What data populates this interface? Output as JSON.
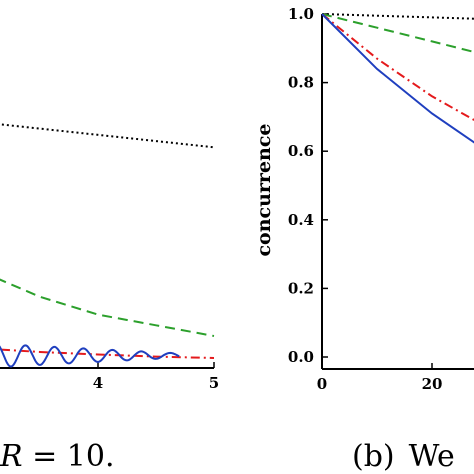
{
  "chart_data": [
    {
      "type": "line",
      "caption_parts": [
        "R",
        " = 10."
      ],
      "xlim": [
        3,
        5
      ],
      "ylim": [
        0,
        1
      ],
      "x_ticks": [
        {
          "value": 4,
          "label": "4"
        },
        {
          "value": 5,
          "label": "5"
        }
      ],
      "series": [
        {
          "color": "#000000",
          "dash": "dotted",
          "x": [
            3,
            5
          ],
          "y": [
            0.69,
            0.62
          ]
        },
        {
          "color": "#2ca02c",
          "dash": "dashed",
          "x": [
            3,
            3.5,
            4,
            4.5,
            5
          ],
          "y": [
            0.27,
            0.2,
            0.15,
            0.12,
            0.09
          ]
        },
        {
          "color": "#e41a1c",
          "dash": "dashdot",
          "x": [
            3,
            3.5,
            4,
            4.5,
            5
          ],
          "y": [
            0.055,
            0.045,
            0.038,
            0.032,
            0.028
          ]
        },
        {
          "color": "#1f3fbf",
          "dash": "solid",
          "oscillating": true,
          "x_start": 3,
          "x_end": 4.7,
          "period": 0.25,
          "y_mean": 0.035,
          "amp_start": 0.035,
          "amp_end": 0.006
        }
      ]
    },
    {
      "type": "line",
      "caption_parts": [
        "(b)",
        "We"
      ],
      "xlabel": "",
      "ylabel": "concurrence",
      "xlim": [
        0,
        40
      ],
      "ylim": [
        0,
        1
      ],
      "x_ticks": [
        {
          "value": 0,
          "label": "0"
        },
        {
          "value": 20,
          "label": "20"
        }
      ],
      "y_ticks": [
        {
          "value": 0.0,
          "label": "0.0"
        },
        {
          "value": 0.2,
          "label": "0.2"
        },
        {
          "value": 0.4,
          "label": "0.4"
        },
        {
          "value": 0.6,
          "label": "0.6"
        },
        {
          "value": 0.8,
          "label": "0.8"
        },
        {
          "value": 1.0,
          "label": "1.0"
        }
      ],
      "series": [
        {
          "color": "#000000",
          "dash": "dotted",
          "x": [
            0,
            10,
            20,
            30,
            40
          ],
          "y": [
            1.0,
            0.995,
            0.99,
            0.985,
            0.98
          ]
        },
        {
          "color": "#2ca02c",
          "dash": "dashed",
          "x": [
            0,
            10,
            20,
            30,
            40
          ],
          "y": [
            1.0,
            0.96,
            0.92,
            0.88,
            0.84
          ]
        },
        {
          "color": "#e41a1c",
          "dash": "dashdot",
          "x": [
            0,
            10,
            20,
            30,
            40
          ],
          "y": [
            1.0,
            0.87,
            0.76,
            0.67,
            0.6
          ]
        },
        {
          "color": "#1f3fbf",
          "dash": "solid",
          "x": [
            0,
            10,
            20,
            30,
            40
          ],
          "y": [
            1.0,
            0.84,
            0.71,
            0.6,
            0.52
          ]
        }
      ]
    }
  ]
}
